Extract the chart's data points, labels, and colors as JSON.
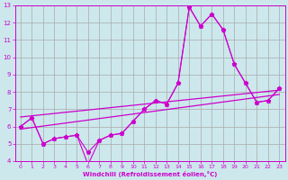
{
  "xlabel": "Windchill (Refroidissement éolien,°C)",
  "bg_color": "#cce8ec",
  "line_color": "#cc00cc",
  "grid_color": "#aaaaaa",
  "xlim": [
    -0.5,
    23.5
  ],
  "ylim": [
    4,
    13
  ],
  "xticks": [
    0,
    1,
    2,
    3,
    4,
    5,
    6,
    7,
    8,
    9,
    10,
    11,
    12,
    13,
    14,
    15,
    16,
    17,
    18,
    19,
    20,
    21,
    22,
    23
  ],
  "yticks": [
    4,
    5,
    6,
    7,
    8,
    9,
    10,
    11,
    12,
    13
  ],
  "series1_x": [
    0,
    1,
    2,
    3,
    4,
    5,
    6,
    7,
    8,
    9,
    10,
    11,
    12,
    13,
    14,
    15,
    16,
    17,
    18,
    19,
    20,
    21,
    22,
    23
  ],
  "series1_y": [
    6.0,
    6.5,
    5.0,
    5.3,
    5.4,
    5.5,
    3.8,
    5.2,
    5.5,
    5.6,
    6.3,
    7.0,
    7.5,
    7.3,
    8.5,
    12.9,
    11.8,
    12.5,
    11.6,
    9.6,
    8.5,
    7.4,
    7.5,
    8.2
  ],
  "series2_x": [
    0,
    1,
    2,
    3,
    4,
    5,
    6,
    7,
    8,
    9,
    10,
    11,
    12,
    13,
    14,
    15,
    16,
    17,
    18,
    19,
    20,
    21,
    22,
    23
  ],
  "series2_y": [
    6.0,
    6.5,
    5.0,
    5.3,
    5.4,
    5.5,
    4.5,
    5.2,
    5.5,
    5.6,
    6.3,
    7.0,
    7.5,
    7.3,
    8.5,
    12.9,
    11.8,
    12.5,
    11.6,
    9.6,
    8.5,
    7.4,
    7.5,
    8.2
  ],
  "regline1_x": [
    0,
    23
  ],
  "regline1_y": [
    5.85,
    7.85
  ],
  "regline2_x": [
    0,
    23
  ],
  "regline2_y": [
    6.55,
    8.1
  ]
}
